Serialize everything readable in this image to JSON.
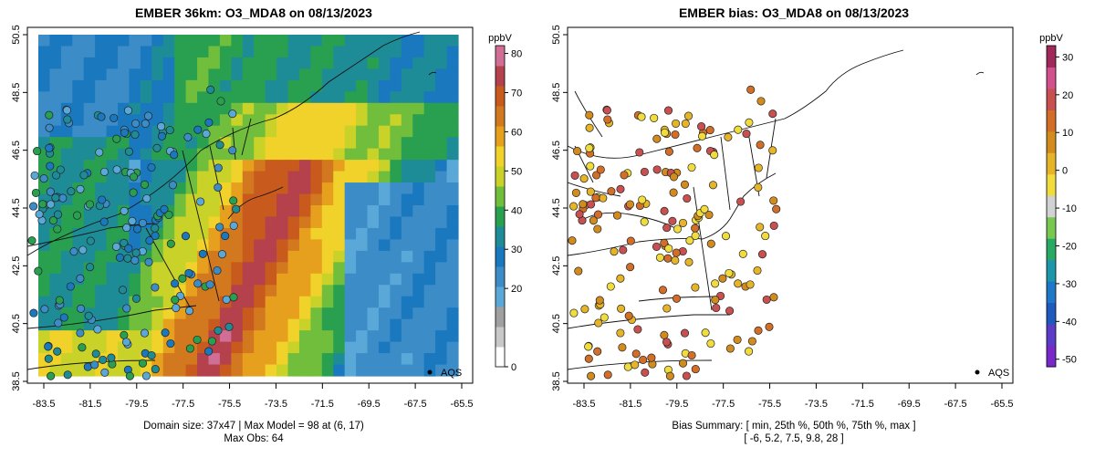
{
  "panels": [
    {
      "title": "EMBER 36km: O3_MDA8 on 08/13/2023",
      "y_ticks": [
        "50.5",
        "48.5",
        "46.5",
        "44.5",
        "42.5",
        "40.5",
        "38.5"
      ],
      "x_ticks": [
        "-83.5",
        "-81.5",
        "-79.5",
        "-77.5",
        "-75.5",
        "-73.5",
        "-71.5",
        "-69.5",
        "-67.5",
        "-65.5"
      ],
      "legend_point": "AQS",
      "footer_line1": "Domain size: 37x47 | Max Model = 98 at (6, 17)",
      "footer_line2": "Max Obs: 64",
      "colorbar": {
        "unit": "ppbV",
        "ticks": [
          "80",
          "70",
          "60",
          "50",
          "40",
          "30",
          "20",
          "0"
        ],
        "tick_values": [
          80,
          70,
          60,
          50,
          40,
          30,
          20,
          0
        ],
        "range": [
          0,
          82
        ],
        "colors": [
          "#ffffff",
          "#c8c8c8",
          "#a0a0a0",
          "#5aa8d8",
          "#3c8cc8",
          "#1a78be",
          "#1e8c96",
          "#28a050",
          "#70be3c",
          "#c8d228",
          "#f0d22a",
          "#e6a01e",
          "#d2781e",
          "#c85a1e",
          "#b4414b",
          "#d06e96"
        ]
      }
    },
    {
      "title": "EMBER bias: O3_MDA8 on 08/13/2023",
      "y_ticks": [
        "50.5",
        "48.5",
        "46.5",
        "44.5",
        "42.5",
        "40.5",
        "38.5"
      ],
      "x_ticks": [
        "-83.5",
        "-81.5",
        "-79.5",
        "-77.5",
        "-75.5",
        "-73.5",
        "-71.5",
        "-69.5",
        "-67.5",
        "-65.5"
      ],
      "legend_point": "AQS",
      "footer_line1": "Bias Summary: [ min, 25th %, 50th %, 75th %, max ]",
      "footer_line2": "[ -6,   5.2,   7.5,   9.8,   28 ]",
      "colorbar": {
        "unit": "ppbV",
        "ticks": [
          "30",
          "20",
          "10",
          "0",
          "-10",
          "-20",
          "-30",
          "-40",
          "-50"
        ],
        "tick_values": [
          30,
          20,
          10,
          0,
          -10,
          -20,
          -30,
          -40,
          -50
        ],
        "range": [
          -52,
          33
        ],
        "colors": [
          "#7828c8",
          "#5a3cc8",
          "#1e5abe",
          "#1e78c8",
          "#1e96aa",
          "#28aa64",
          "#78c850",
          "#d2d2d2",
          "#f0dc3c",
          "#e6b428",
          "#d28c1e",
          "#d26e28",
          "#c85050",
          "#d2508c",
          "#a0285a"
        ]
      }
    }
  ]
}
